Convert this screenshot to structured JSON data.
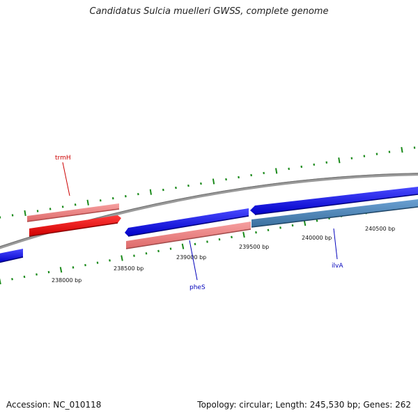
{
  "title": "Candidatus Sulcia muelleri GWSS, complete genome",
  "footer": {
    "accession": "Accession: NC_010118",
    "summary": "Topology: circular; Length: 245,530 bp; Genes: 262"
  },
  "scale_labels": [
    "238000 bp",
    "238500 bp",
    "239000 bp",
    "239500 bp",
    "240000 bp",
    "240500 bp"
  ],
  "genes": [
    {
      "name": "trmH",
      "strand": "reverse",
      "color": "#ff0000",
      "label_color": "#cc0000"
    },
    {
      "name": "pheS",
      "strand": "forward",
      "color": "#0000ee",
      "label_color": "#0000bb"
    },
    {
      "name": "ilvA",
      "strand": "forward",
      "color": "#0000ee",
      "label_color": "#0000bb"
    }
  ],
  "colors": {
    "backbone": "#808080",
    "tick": "#1a8a1a",
    "forward_gene": "#0000ee",
    "reverse_gene": "#ff0000",
    "forward_cds": "#4682b4",
    "reverse_cds": "#f08080"
  }
}
